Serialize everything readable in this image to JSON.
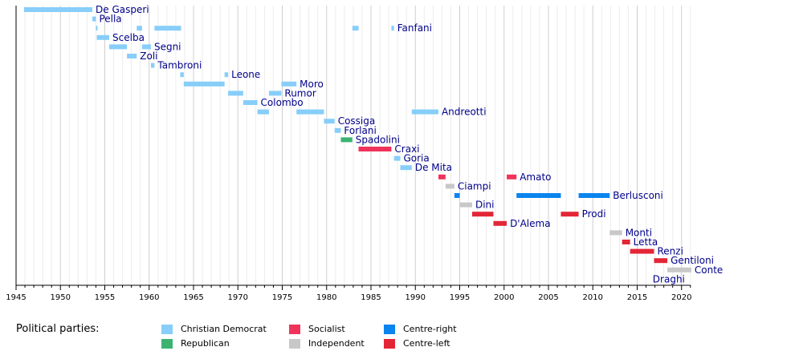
{
  "chart_data": {
    "type": "timeline",
    "x_range": [
      1945,
      2021
    ],
    "ticks": [
      1945,
      1950,
      1955,
      1960,
      1965,
      1970,
      1975,
      1980,
      1985,
      1990,
      1995,
      2000,
      2005,
      2010,
      2015,
      2020
    ],
    "colors": {
      "Christian Democrat": "#87cefa",
      "Republican": "#3cb371",
      "Socialist": "#f0335a",
      "Independent": "#c8c8c8",
      "Centre-right": "#0a84ee",
      "Centre-left": "#e32636"
    },
    "legend_title": "Political parties:",
    "legend": [
      "Christian Democrat",
      "Republican",
      "Socialist",
      "Independent",
      "Centre-right",
      "Centre-left"
    ],
    "rows": [
      {
        "name": "De Gasperi",
        "party": "Christian Democrat",
        "terms": [
          [
            1945.9,
            1953.6
          ]
        ]
      },
      {
        "name": "Pella",
        "party": "Christian Democrat",
        "terms": [
          [
            1953.6,
            1954.0
          ]
        ]
      },
      {
        "name": "Fanfani",
        "party": "Christian Democrat",
        "terms": [
          [
            1954.0,
            1954.1
          ],
          [
            1958.6,
            1959.2
          ],
          [
            1960.6,
            1963.6
          ],
          [
            1982.9,
            1983.6
          ],
          [
            1987.3,
            1987.6
          ]
        ]
      },
      {
        "name": "Scelba",
        "party": "Christian Democrat",
        "terms": [
          [
            1954.1,
            1955.5
          ]
        ]
      },
      {
        "name": "Segni",
        "party": "Christian Democrat",
        "terms": [
          [
            1955.5,
            1957.5
          ],
          [
            1959.2,
            1960.2
          ]
        ]
      },
      {
        "name": "Zoli",
        "party": "Christian Democrat",
        "terms": [
          [
            1957.5,
            1958.6
          ]
        ]
      },
      {
        "name": "Tambroni",
        "party": "Christian Democrat",
        "terms": [
          [
            1960.2,
            1960.6
          ]
        ]
      },
      {
        "name": "Leone",
        "party": "Christian Democrat",
        "terms": [
          [
            1963.5,
            1963.9
          ],
          [
            1968.5,
            1968.9
          ]
        ]
      },
      {
        "name": "Moro",
        "party": "Christian Democrat",
        "terms": [
          [
            1963.9,
            1968.5
          ],
          [
            1974.9,
            1976.6
          ]
        ]
      },
      {
        "name": "Rumor",
        "party": "Christian Democrat",
        "terms": [
          [
            1968.9,
            1970.6
          ],
          [
            1973.5,
            1974.9
          ]
        ]
      },
      {
        "name": "Colombo",
        "party": "Christian Democrat",
        "terms": [
          [
            1970.6,
            1972.2
          ]
        ]
      },
      {
        "name": "Andreotti",
        "party": "Christian Democrat",
        "terms": [
          [
            1972.2,
            1973.5
          ],
          [
            1976.6,
            1979.7
          ],
          [
            1989.6,
            1992.6
          ]
        ]
      },
      {
        "name": "Cossiga",
        "party": "Christian Democrat",
        "terms": [
          [
            1979.7,
            1980.9
          ]
        ]
      },
      {
        "name": "Forlani",
        "party": "Christian Democrat",
        "terms": [
          [
            1980.9,
            1981.6
          ]
        ]
      },
      {
        "name": "Spadolini",
        "party": "Republican",
        "terms": [
          [
            1981.6,
            1982.9
          ]
        ]
      },
      {
        "name": "Craxi",
        "party": "Socialist",
        "terms": [
          [
            1983.6,
            1987.3
          ]
        ]
      },
      {
        "name": "Goria",
        "party": "Christian Democrat",
        "terms": [
          [
            1987.6,
            1988.3
          ]
        ]
      },
      {
        "name": "De Mita",
        "party": "Christian Democrat",
        "terms": [
          [
            1988.3,
            1989.6
          ]
        ]
      },
      {
        "name": "Amato",
        "party": "Socialist",
        "terms": [
          [
            1992.6,
            1993.4
          ],
          [
            2000.3,
            2001.4
          ]
        ]
      },
      {
        "name": "Ciampi",
        "party": "Independent",
        "terms": [
          [
            1993.4,
            1994.4
          ]
        ]
      },
      {
        "name": "Berlusconi",
        "party": "Centre-right",
        "terms": [
          [
            1994.4,
            1995.0
          ],
          [
            2001.4,
            2006.4
          ],
          [
            2008.4,
            2011.9
          ]
        ]
      },
      {
        "name": "Dini",
        "party": "Independent",
        "terms": [
          [
            1995.0,
            1996.4
          ]
        ]
      },
      {
        "name": "Prodi",
        "party": "Centre-left",
        "terms": [
          [
            1996.4,
            1998.8
          ],
          [
            2006.4,
            2008.4
          ]
        ]
      },
      {
        "name": "D'Alema",
        "party": "Centre-left",
        "terms": [
          [
            1998.8,
            2000.3
          ]
        ]
      },
      {
        "name": "Monti",
        "party": "Independent",
        "terms": [
          [
            2011.9,
            2013.3
          ]
        ]
      },
      {
        "name": "Letta",
        "party": "Centre-left",
        "terms": [
          [
            2013.3,
            2014.2
          ]
        ]
      },
      {
        "name": "Renzi",
        "party": "Centre-left",
        "terms": [
          [
            2014.2,
            2016.9
          ]
        ]
      },
      {
        "name": "Gentiloni",
        "party": "Centre-left",
        "terms": [
          [
            2016.9,
            2018.4
          ]
        ]
      },
      {
        "name": "Conte",
        "party": "Independent",
        "terms": [
          [
            2018.4,
            2021.1
          ]
        ]
      },
      {
        "name": "Draghi",
        "party": "Independent",
        "terms": []
      }
    ]
  }
}
